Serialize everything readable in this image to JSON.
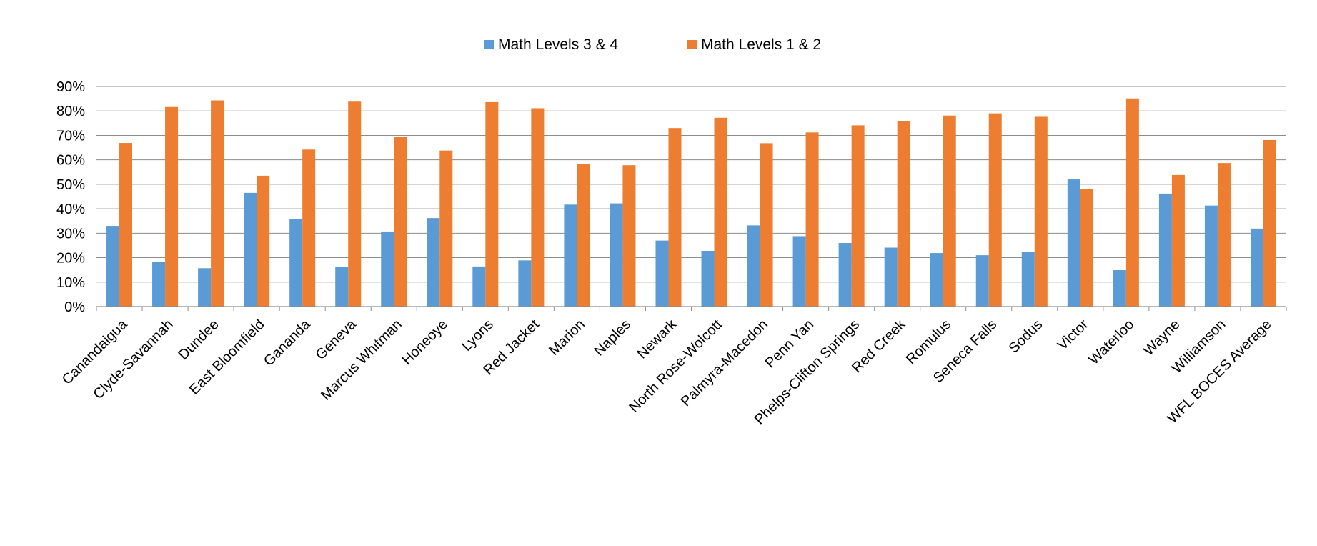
{
  "chart_data": {
    "type": "bar",
    "title": "",
    "xlabel": "",
    "ylabel": "",
    "ylim": [
      0,
      0.9
    ],
    "yticks": [
      0,
      0.1,
      0.2,
      0.3,
      0.4,
      0.5,
      0.6,
      0.7,
      0.8,
      0.9
    ],
    "ytick_labels": [
      "0%",
      "10%",
      "20%",
      "30%",
      "40%",
      "50%",
      "60%",
      "70%",
      "80%",
      "90%"
    ],
    "grid": true,
    "legend_position": "top-center",
    "categories": [
      "Canandaigua",
      "Clyde-Savannah",
      "Dundee",
      "East Bloomfield",
      "Gananda",
      "Geneva",
      "Marcus Whitman",
      "Honeoye",
      "Lyons",
      "Red Jacket",
      "Marion",
      "Naples",
      "Newark",
      "North Rose-Wolcott",
      "Palmyra-Macedon",
      "Penn Yan",
      "Phelps-Clifton Springs",
      "Red Creek",
      "Romulus",
      "Seneca Falls",
      "Sodus",
      "Victor",
      "Waterloo",
      "Wayne",
      "Williamson",
      "WFL BOCES Average"
    ],
    "series": [
      {
        "name": "Math Levels 3 & 4",
        "color": "#5b9bd5",
        "values": [
          0.33,
          0.184,
          0.157,
          0.465,
          0.358,
          0.162,
          0.307,
          0.362,
          0.164,
          0.189,
          0.417,
          0.422,
          0.27,
          0.228,
          0.332,
          0.288,
          0.26,
          0.241,
          0.219,
          0.21,
          0.224,
          0.52,
          0.149,
          0.462,
          0.413,
          0.319
        ]
      },
      {
        "name": "Math Levels 1 & 2",
        "color": "#ed7d31",
        "values": [
          0.669,
          0.816,
          0.843,
          0.535,
          0.642,
          0.838,
          0.694,
          0.638,
          0.836,
          0.811,
          0.583,
          0.578,
          0.73,
          0.772,
          0.668,
          0.712,
          0.741,
          0.759,
          0.781,
          0.79,
          0.776,
          0.48,
          0.851,
          0.538,
          0.587,
          0.681
        ]
      }
    ]
  }
}
